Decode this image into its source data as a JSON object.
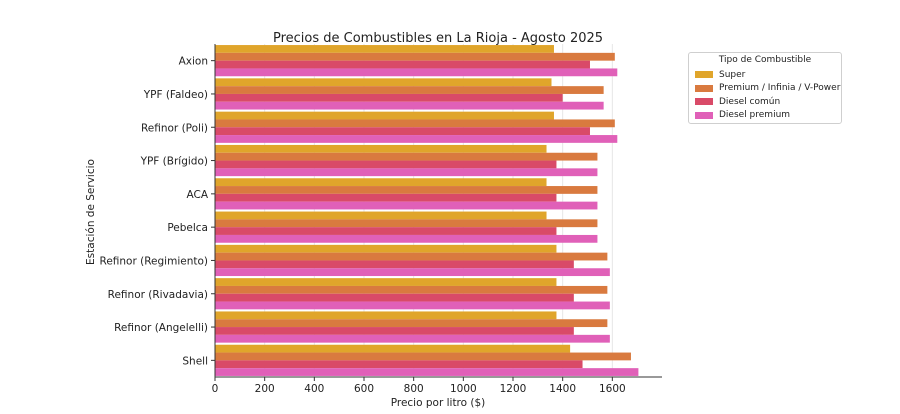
{
  "chart_data": {
    "type": "bar",
    "orientation": "horizontal",
    "title": "Precios de Combustibles en La Rioja - Agosto 2025",
    "xlabel": "Precio por litro ($)",
    "ylabel": "Estación de Servicio",
    "xlim": [
      0,
      1800
    ],
    "xticks": [
      0,
      200,
      400,
      600,
      800,
      1000,
      1200,
      1400,
      1600
    ],
    "grid": "vertical",
    "legend_title": "Tipo de Combustible",
    "legend_position": "outside-top-right",
    "categories": [
      "Axion",
      "YPF (Faldeo)",
      "Refinor (Poli)",
      "YPF (Brígido)",
      "ACA",
      "Pebelca",
      "Refinor (Regimiento)",
      "Refinor (Rivadavia)",
      "Refinor (Angelelli)",
      "Shell"
    ],
    "series": [
      {
        "name": "Super",
        "color": "#e0a52b",
        "values": [
          1365,
          1355,
          1365,
          1335,
          1335,
          1335,
          1375,
          1375,
          1375,
          1430
        ]
      },
      {
        "name": "Premium / Infinia / V-Power",
        "color": "#d97a3f",
        "values": [
          1610,
          1565,
          1610,
          1540,
          1540,
          1540,
          1580,
          1580,
          1580,
          1675
        ]
      },
      {
        "name": "Diesel común",
        "color": "#d94a68",
        "values": [
          1510,
          1400,
          1510,
          1375,
          1375,
          1375,
          1445,
          1445,
          1445,
          1480
        ]
      },
      {
        "name": "Diesel premium",
        "color": "#e060b8",
        "values": [
          1620,
          1565,
          1620,
          1540,
          1540,
          1540,
          1590,
          1590,
          1590,
          1705
        ]
      }
    ]
  }
}
